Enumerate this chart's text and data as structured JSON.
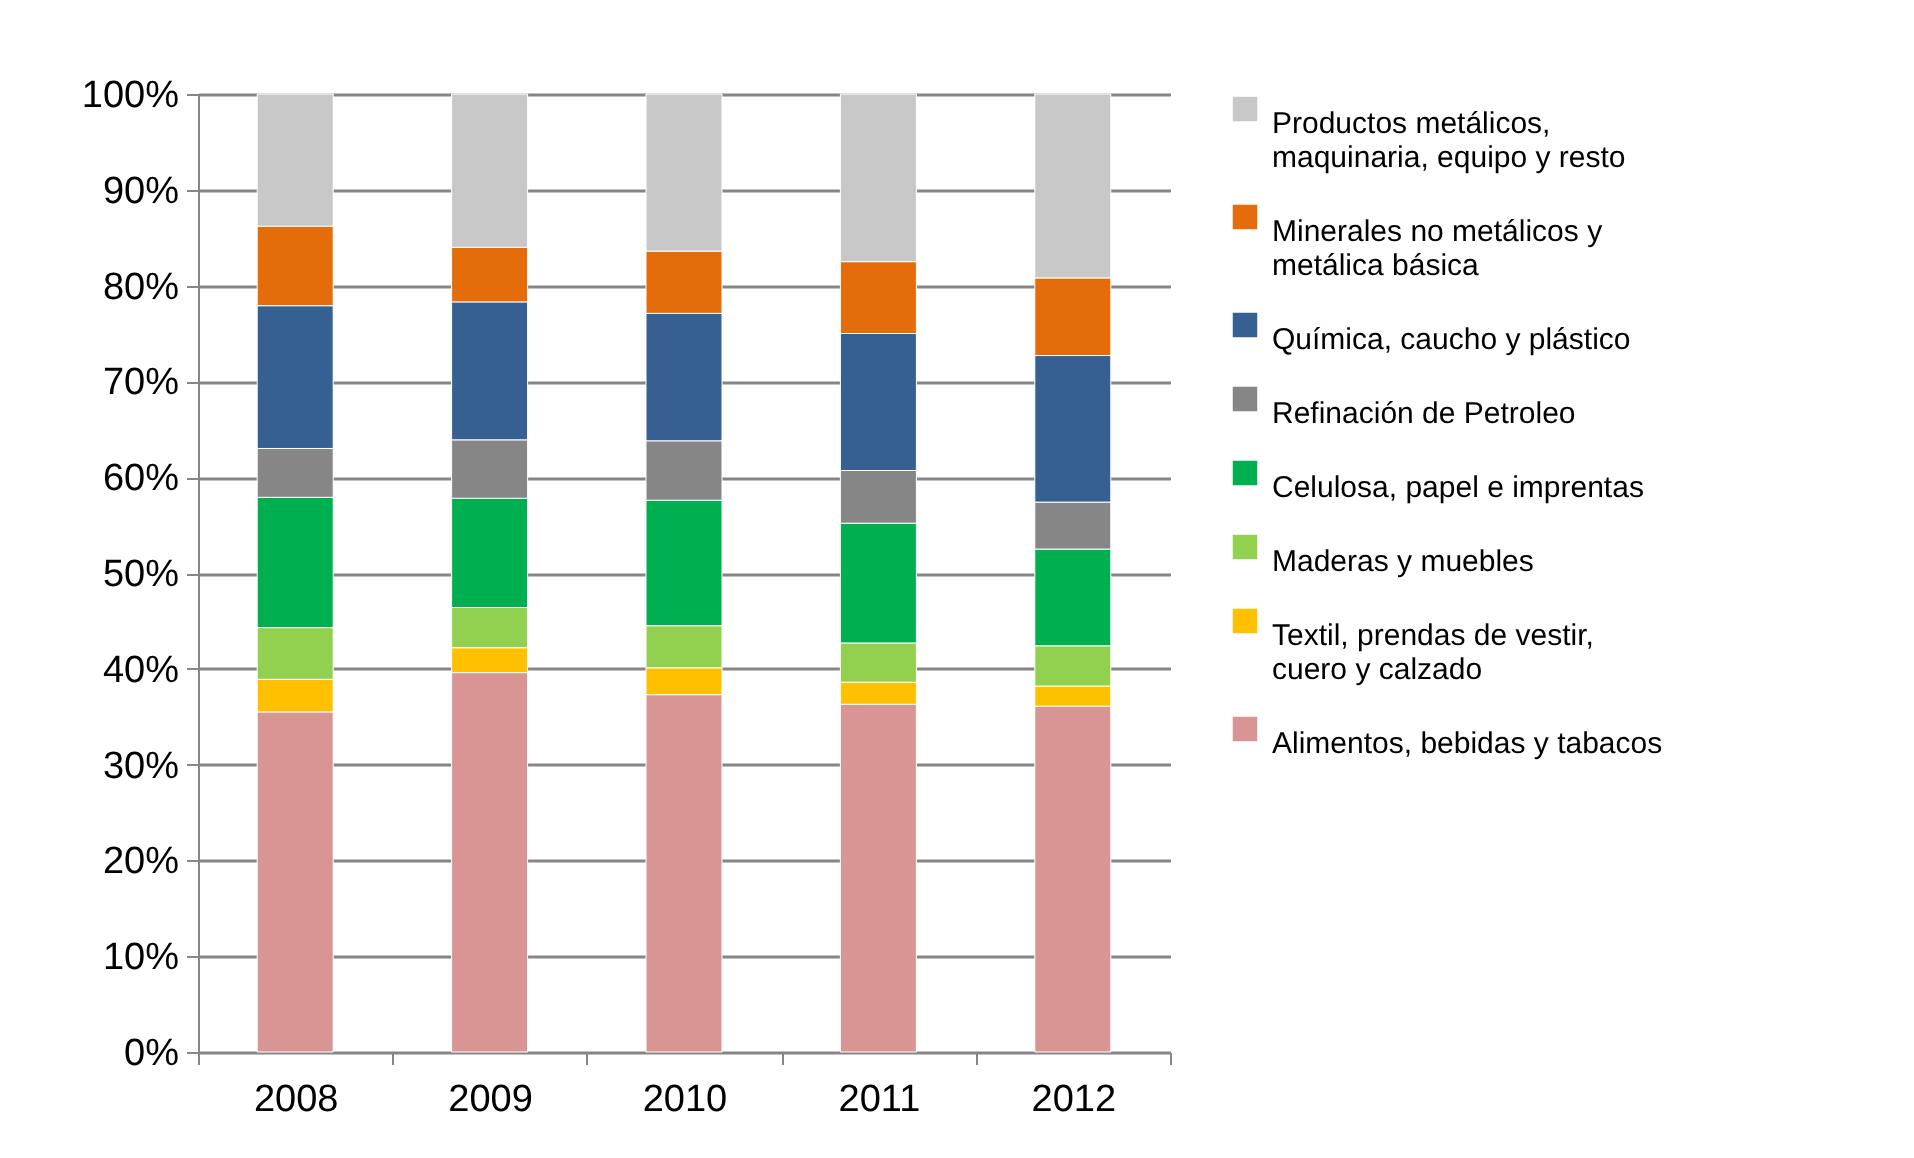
{
  "chart_data": {
    "type": "bar",
    "stacked": true,
    "categories": [
      "2008",
      "2009",
      "2010",
      "2011",
      "2012"
    ],
    "series": [
      {
        "name": "Alimentos, bebidas y tabacos",
        "color": "#d99594",
        "values": [
          35.5,
          39.6,
          37.3,
          36.3,
          36.1
        ]
      },
      {
        "name": "Textil, prendas de vestir, cuero y calzado",
        "color": "#ffc000",
        "values": [
          3.4,
          2.6,
          2.8,
          2.3,
          2.1
        ]
      },
      {
        "name": "Maderas y muebles",
        "color": "#92d050",
        "values": [
          5.4,
          4.2,
          4.4,
          4.1,
          4.2
        ]
      },
      {
        "name": "Celulosa, papel e imprentas",
        "color": "#00b050",
        "values": [
          13.6,
          11.4,
          13.1,
          12.5,
          10.1
        ]
      },
      {
        "name": "Refinación de Petroleo",
        "color": "#868686",
        "values": [
          5.1,
          6.1,
          6.2,
          5.5,
          4.9
        ]
      },
      {
        "name": "Química, caucho y plástico",
        "color": "#376092",
        "values": [
          14.9,
          14.4,
          13.3,
          14.3,
          15.3
        ]
      },
      {
        "name": "Minerales no metálicos y metálica básica",
        "color": "#e46c0a",
        "values": [
          8.3,
          5.7,
          6.5,
          7.5,
          8.1
        ]
      },
      {
        "name": "Productos metálicos, maquinaria, equipo y resto",
        "color": "#c8c8c8",
        "values": [
          13.8,
          16.0,
          16.4,
          17.5,
          19.2
        ]
      }
    ],
    "ylim": [
      0,
      100
    ],
    "yticks": [
      {
        "value": 0,
        "label": "0%"
      },
      {
        "value": 10,
        "label": "10%"
      },
      {
        "value": 20,
        "label": "20%"
      },
      {
        "value": 30,
        "label": "30%"
      },
      {
        "value": 40,
        "label": "40%"
      },
      {
        "value": 50,
        "label": "50%"
      },
      {
        "value": 60,
        "label": "60%"
      },
      {
        "value": 70,
        "label": "70%"
      },
      {
        "value": 80,
        "label": "80%"
      },
      {
        "value": 90,
        "label": "90%"
      },
      {
        "value": 100,
        "label": "100%"
      }
    ],
    "grid": "y",
    "legend": "right"
  }
}
